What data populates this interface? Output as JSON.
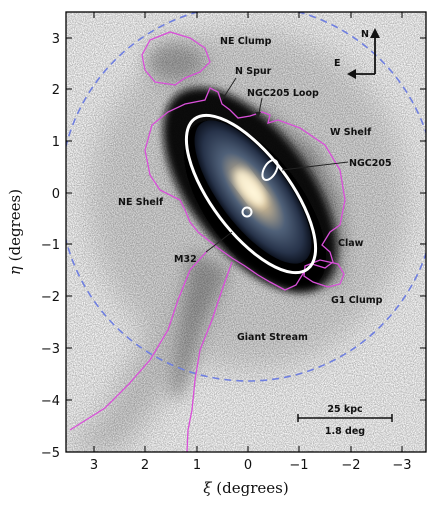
{
  "figure": {
    "xlabel_symbol": "ξ",
    "xlabel_units": " (degrees)",
    "ylabel_symbol": "η",
    "ylabel_units": " (degrees)",
    "xticks": [
      "3",
      "2",
      "1",
      "0",
      "−1",
      "−2",
      "−3"
    ],
    "yticks": [
      "3",
      "2",
      "1",
      "0",
      "−1",
      "−2",
      "−3",
      "−4",
      "−5"
    ]
  },
  "labels": {
    "ne_clump": "NE Clump",
    "n_spur": "N Spur",
    "ngc205_loop": "NGC205 Loop",
    "w_shelf": "W Shelf",
    "ngc205": "NGC205",
    "ne_shelf": "NE Shelf",
    "claw": "Claw",
    "m32": "M32",
    "g1_clump": "G1 Clump",
    "giant_stream": "Giant Stream"
  },
  "compass": {
    "north": "N",
    "east": "E"
  },
  "scalebar": {
    "distance": "25 kpc",
    "angle": "1.8 deg"
  },
  "colors": {
    "contour": "#d94fd9",
    "dashed_circle": "#6f7fe0",
    "ellipse": "#ffffff"
  }
}
